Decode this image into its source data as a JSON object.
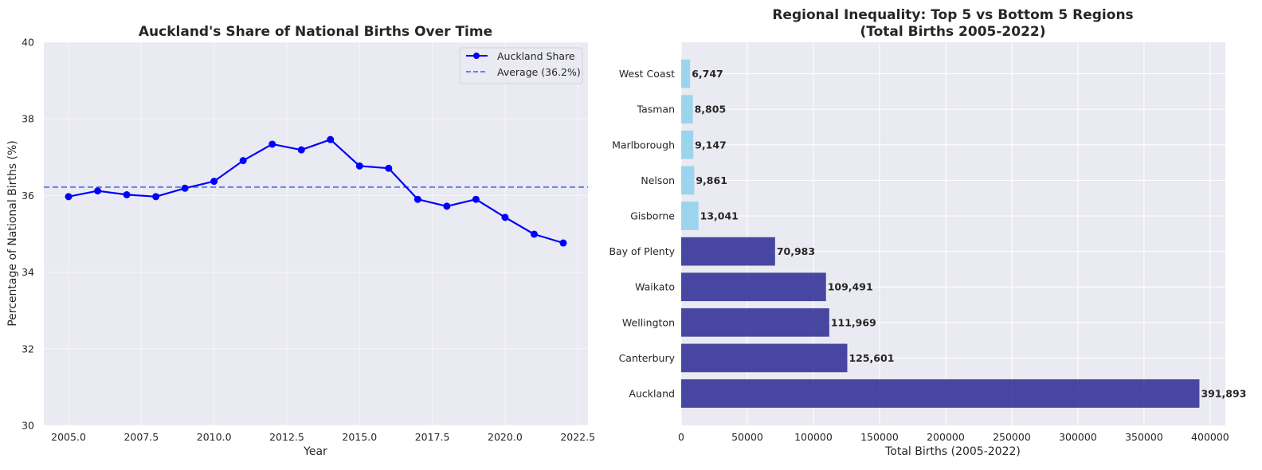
{
  "chart_data": [
    {
      "type": "line",
      "title": "Auckland's Share of National Births Over Time",
      "xlabel": "Year",
      "ylabel": "Percentage of National Births (%)",
      "xlim": [
        2004.15,
        2022.85
      ],
      "ylim": [
        30,
        40
      ],
      "xticks": [
        "2005.0",
        "2007.5",
        "2010.0",
        "2012.5",
        "2015.0",
        "2017.5",
        "2020.0",
        "2022.5"
      ],
      "yticks": [
        "30",
        "32",
        "34",
        "36",
        "38",
        "40"
      ],
      "grid": true,
      "legend_position": "top-right",
      "series": [
        {
          "name": "Auckland Share",
          "color": "#0000ff",
          "x": [
            2005,
            2006,
            2007,
            2008,
            2009,
            2010,
            2011,
            2012,
            2013,
            2014,
            2015,
            2016,
            2017,
            2018,
            2019,
            2020,
            2021,
            2022
          ],
          "y": [
            35.97,
            36.12,
            36.02,
            35.97,
            36.19,
            36.37,
            36.91,
            37.34,
            37.19,
            37.46,
            36.77,
            36.71,
            35.9,
            35.72,
            35.9,
            35.43,
            34.99,
            34.76
          ]
        }
      ],
      "reference_line": {
        "name": "Average (36.2%)",
        "y": 36.22,
        "color": "#4169e1"
      }
    },
    {
      "type": "bar",
      "orientation": "horizontal",
      "title_lines": [
        "Regional Inequality: Top 5 vs Bottom 5 Regions",
        "(Total Births 2005-2022)"
      ],
      "xlabel": "Total Births (2005-2022)",
      "xlim": [
        0,
        411500
      ],
      "xticks": [
        "0",
        "50000",
        "100000",
        "150000",
        "200000",
        "250000",
        "300000",
        "350000",
        "400000"
      ],
      "grid": true,
      "categories": [
        "Auckland",
        "Canterbury",
        "Wellington",
        "Waikato",
        "Bay of Plenty",
        "Gisborne",
        "Nelson",
        "Marlborough",
        "Tasman",
        "West Coast"
      ],
      "values": [
        391893,
        125601,
        111969,
        109491,
        70983,
        13041,
        9861,
        9147,
        8805,
        6747
      ],
      "value_labels": [
        "391,893",
        "125,601",
        "111,969",
        "109,491",
        "70,983",
        "13,041",
        "9,861",
        "9,147",
        "8,805",
        "6,747"
      ],
      "colors": [
        "#1e1e8c",
        "#1e1e8c",
        "#1e1e8c",
        "#1e1e8c",
        "#1e1e8c",
        "#87ceeb",
        "#87ceeb",
        "#87ceeb",
        "#87ceeb",
        "#87ceeb"
      ]
    }
  ]
}
